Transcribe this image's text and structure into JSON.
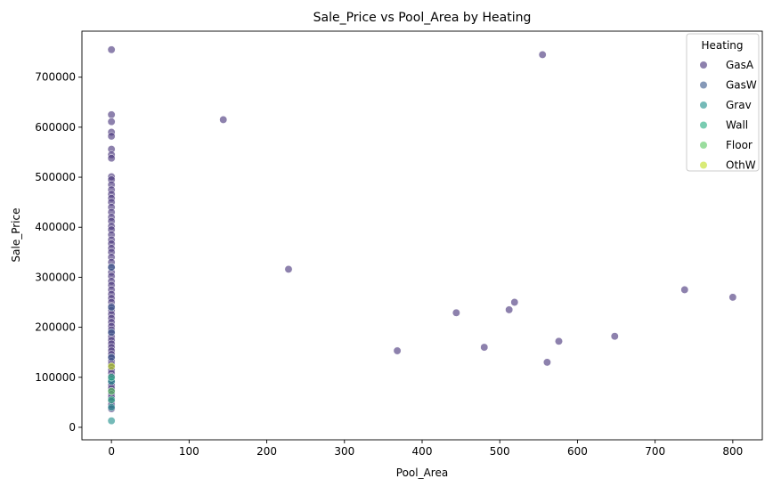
{
  "chart_data": {
    "type": "scatter",
    "title": "Sale_Price vs Pool_Area by Heating",
    "xlabel": "Pool_Area",
    "ylabel": "Sale_Price",
    "xlim": [
      -38,
      838
    ],
    "ylim": [
      -25000,
      792000
    ],
    "xticks": [
      0,
      100,
      200,
      300,
      400,
      500,
      600,
      700,
      800
    ],
    "yticks": [
      0,
      100000,
      200000,
      300000,
      400000,
      500000,
      600000,
      700000
    ],
    "xtick_labels": [
      "0",
      "100",
      "200",
      "300",
      "400",
      "500",
      "600",
      "700",
      "800"
    ],
    "ytick_labels": [
      "0",
      "100000",
      "200000",
      "300000",
      "400000",
      "500000",
      "600000",
      "700000"
    ],
    "grid": false,
    "legend": {
      "title": "Heating",
      "placement": "top-right",
      "entries": [
        "GasA",
        "GasW",
        "Grav",
        "Wall",
        "Floor",
        "OthW"
      ]
    },
    "series": [
      {
        "name": "GasA",
        "color": "#47337a",
        "points": [
          [
            0,
            755000
          ],
          [
            0,
            625000
          ],
          [
            0,
            611000
          ],
          [
            0,
            590000
          ],
          [
            0,
            582000
          ],
          [
            0,
            556000
          ],
          [
            0,
            545000
          ],
          [
            0,
            538000
          ],
          [
            0,
            501000
          ],
          [
            0,
            495000
          ],
          [
            0,
            485000
          ],
          [
            0,
            475000
          ],
          [
            0,
            466000
          ],
          [
            0,
            458000
          ],
          [
            0,
            450000
          ],
          [
            0,
            440000
          ],
          [
            0,
            430000
          ],
          [
            0,
            420000
          ],
          [
            0,
            412000
          ],
          [
            0,
            402000
          ],
          [
            0,
            395000
          ],
          [
            0,
            385000
          ],
          [
            0,
            375000
          ],
          [
            0,
            367000
          ],
          [
            0,
            358000
          ],
          [
            0,
            350000
          ],
          [
            0,
            340000
          ],
          [
            0,
            330000
          ],
          [
            0,
            320000
          ],
          [
            0,
            310000
          ],
          [
            0,
            302000
          ],
          [
            0,
            292000
          ],
          [
            0,
            284000
          ],
          [
            0,
            275000
          ],
          [
            0,
            266000
          ],
          [
            0,
            258000
          ],
          [
            0,
            250000
          ],
          [
            0,
            242000
          ],
          [
            0,
            234000
          ],
          [
            0,
            226000
          ],
          [
            0,
            218000
          ],
          [
            0,
            210000
          ],
          [
            0,
            202000
          ],
          [
            0,
            195000
          ],
          [
            0,
            188000
          ],
          [
            0,
            181000
          ],
          [
            0,
            174000
          ],
          [
            0,
            167000
          ],
          [
            0,
            160000
          ],
          [
            0,
            153000
          ],
          [
            0,
            146000
          ],
          [
            0,
            139000
          ],
          [
            0,
            132000
          ],
          [
            0,
            126000
          ],
          [
            0,
            120000
          ],
          [
            0,
            114000
          ],
          [
            0,
            108000
          ],
          [
            0,
            102000
          ],
          [
            0,
            96000
          ],
          [
            0,
            90000
          ],
          [
            0,
            84000
          ],
          [
            0,
            78000
          ],
          [
            0,
            72000
          ],
          [
            0,
            66000
          ],
          [
            0,
            60000
          ],
          [
            0,
            52000
          ],
          [
            0,
            45000
          ],
          [
            0,
            37000
          ],
          [
            144,
            615000
          ],
          [
            228,
            316000
          ],
          [
            368,
            153000
          ],
          [
            444,
            229000
          ],
          [
            480,
            160000
          ],
          [
            512,
            235000
          ],
          [
            519,
            250000
          ],
          [
            555,
            745000
          ],
          [
            561,
            130000
          ],
          [
            576,
            172000
          ],
          [
            648,
            182000
          ],
          [
            738,
            275000
          ],
          [
            800,
            260000
          ]
        ]
      },
      {
        "name": "GasW",
        "color": "#3b5b8c",
        "points": [
          [
            0,
            320000
          ],
          [
            0,
            240000
          ],
          [
            0,
            190000
          ],
          [
            0,
            140000
          ]
        ]
      },
      {
        "name": "Grav",
        "color": "#21908d",
        "points": [
          [
            0,
            13000
          ],
          [
            0,
            40000
          ],
          [
            0,
            92000
          ]
        ]
      },
      {
        "name": "Wall",
        "color": "#27ad81",
        "points": [
          [
            0,
            55000
          ],
          [
            0,
            100000
          ]
        ]
      },
      {
        "name": "Floor",
        "color": "#5cc863",
        "points": [
          [
            0,
            72000
          ]
        ]
      },
      {
        "name": "OthW",
        "color": "#c2df23",
        "points": [
          [
            0,
            122000
          ]
        ]
      }
    ]
  }
}
